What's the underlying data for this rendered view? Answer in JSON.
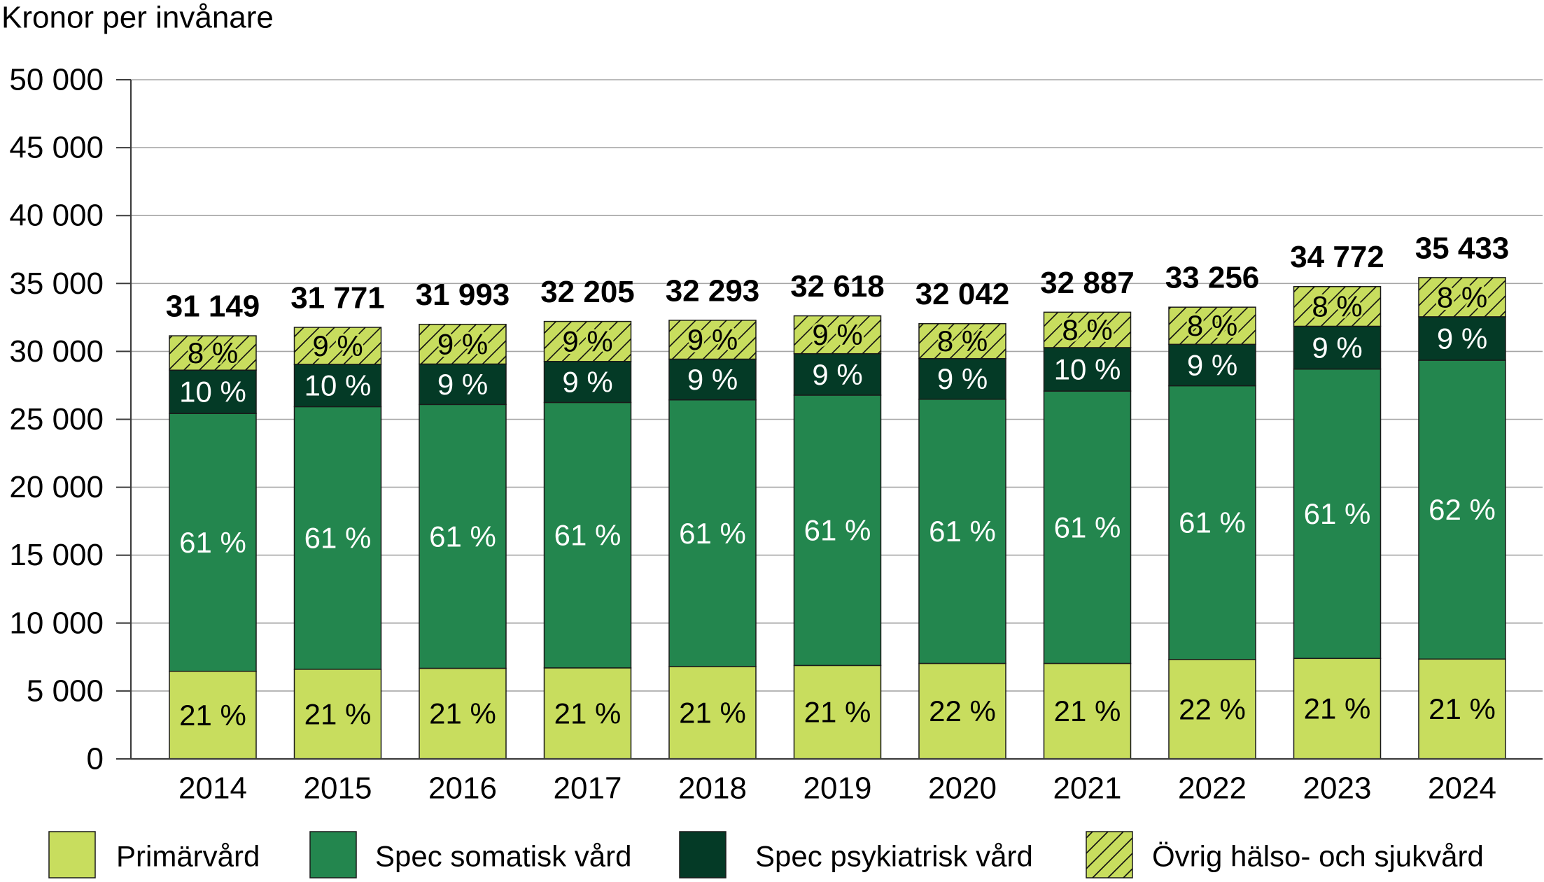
{
  "chart_data": {
    "type": "bar",
    "stacked": true,
    "ylabel": "Kronor per invånare",
    "categories": [
      "2014",
      "2015",
      "2016",
      "2017",
      "2018",
      "2019",
      "2020",
      "2021",
      "2022",
      "2023",
      "2024"
    ],
    "ylim": [
      0,
      50000
    ],
    "yticks": [
      0,
      5000,
      10000,
      15000,
      20000,
      25000,
      30000,
      35000,
      40000,
      45000,
      50000
    ],
    "ytick_labels": [
      "0",
      "5 000",
      "10 000",
      "15 000",
      "20 000",
      "25 000",
      "30 000",
      "35 000",
      "40 000",
      "45 000",
      "50 000"
    ],
    "grid": true,
    "legend_position": "bottom",
    "total_labels": [
      "31 149",
      "31 771",
      "31 993",
      "32 205",
      "32 293",
      "32 618",
      "32 042",
      "32 887",
      "33 256",
      "34 772",
      "35 433"
    ],
    "series": [
      {
        "name": "Primärvård",
        "color": "#c8dd5e",
        "text_color": "#000000",
        "hatched": false,
        "values": [
          6450,
          6600,
          6670,
          6700,
          6800,
          6880,
          7030,
          7030,
          7320,
          7400,
          7350
        ],
        "labels": [
          "21 %",
          "21 %",
          "21 %",
          "21 %",
          "21 %",
          "21 %",
          "22 %",
          "21 %",
          "22 %",
          "21 %",
          "21 %"
        ]
      },
      {
        "name": "Spec somatisk vård",
        "color": "#23864e",
        "text_color": "#ffffff",
        "hatched": false,
        "values": [
          18980,
          19330,
          19420,
          19540,
          19630,
          19900,
          19450,
          20050,
          20150,
          21300,
          22000
        ],
        "labels": [
          "61 %",
          "61 %",
          "61 %",
          "61 %",
          "61 %",
          "61 %",
          "61 %",
          "61 %",
          "61 %",
          "61 %",
          "62 %"
        ]
      },
      {
        "name": "Spec psykiatrisk vård",
        "color": "#043a26",
        "text_color": "#ffffff",
        "hatched": false,
        "values": [
          3190,
          3120,
          2980,
          3020,
          3000,
          3050,
          2990,
          3200,
          3050,
          3150,
          3200
        ],
        "labels": [
          "10 %",
          "10 %",
          "9 %",
          "9 %",
          "9 %",
          "9 %",
          "9 %",
          "10 %",
          "9 %",
          "9 %",
          "9 %"
        ]
      },
      {
        "name": "Övrig hälso- och sjukvård",
        "color": "#c8dd5e",
        "text_color": "#000000",
        "hatched": true,
        "values": [
          2529,
          2721,
          2923,
          2945,
          2863,
          2788,
          2572,
          2607,
          2736,
          2922,
          2883
        ],
        "labels": [
          "8 %",
          "9 %",
          "9 %",
          "9 %",
          "9 %",
          "9 %",
          "8 %",
          "8 %",
          "8 %",
          "8 %",
          "8 %"
        ]
      }
    ]
  }
}
